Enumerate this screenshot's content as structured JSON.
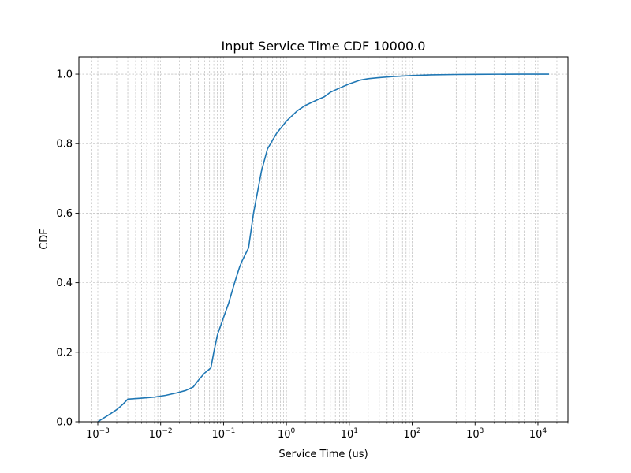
{
  "chart_data": {
    "type": "line",
    "title": "Input Service Time CDF 10000.0",
    "xlabel": "Service Time (us)",
    "ylabel": "CDF",
    "xscale": "log",
    "xlim": [
      0.0005,
      30000
    ],
    "ylim": [
      0,
      1.05
    ],
    "grid": true,
    "x_ticks": [
      {
        "base": "10",
        "exp": "−3",
        "value": 0.001
      },
      {
        "base": "10",
        "exp": "−2",
        "value": 0.01
      },
      {
        "base": "10",
        "exp": "−1",
        "value": 0.1
      },
      {
        "base": "10",
        "exp": "0",
        "value": 1
      },
      {
        "base": "10",
        "exp": "1",
        "value": 10
      },
      {
        "base": "10",
        "exp": "2",
        "value": 100
      },
      {
        "base": "10",
        "exp": "3",
        "value": 1000
      },
      {
        "base": "10",
        "exp": "4",
        "value": 10000
      }
    ],
    "y_ticks": [
      {
        "label": "0.0",
        "value": 0
      },
      {
        "label": "0.2",
        "value": 0.2
      },
      {
        "label": "0.4",
        "value": 0.4
      },
      {
        "label": "0.6",
        "value": 0.6
      },
      {
        "label": "0.8",
        "value": 0.8
      },
      {
        "label": "1.0",
        "value": 1.0
      }
    ],
    "series": [
      {
        "color": "#1f77b4",
        "x": [
          0.001,
          0.0015,
          0.002,
          0.0025,
          0.003,
          0.005,
          0.008,
          0.012,
          0.018,
          0.025,
          0.033,
          0.04,
          0.05,
          0.063,
          0.07,
          0.08,
          0.1,
          0.12,
          0.15,
          0.18,
          0.2,
          0.25,
          0.3,
          0.4,
          0.5,
          0.7,
          1.0,
          1.5,
          2.0,
          3.0,
          4.0,
          5.0,
          7.0,
          10,
          15,
          20,
          30,
          50,
          100,
          200,
          500,
          1000,
          5000,
          15000
        ],
        "y": [
          0.0,
          0.02,
          0.035,
          0.05,
          0.065,
          0.068,
          0.071,
          0.076,
          0.083,
          0.09,
          0.1,
          0.12,
          0.14,
          0.155,
          0.2,
          0.25,
          0.3,
          0.34,
          0.4,
          0.445,
          0.465,
          0.5,
          0.6,
          0.72,
          0.785,
          0.83,
          0.865,
          0.895,
          0.91,
          0.925,
          0.935,
          0.948,
          0.96,
          0.972,
          0.983,
          0.987,
          0.99,
          0.993,
          0.996,
          0.998,
          0.999,
          0.9995,
          1.0,
          1.0
        ]
      }
    ]
  }
}
